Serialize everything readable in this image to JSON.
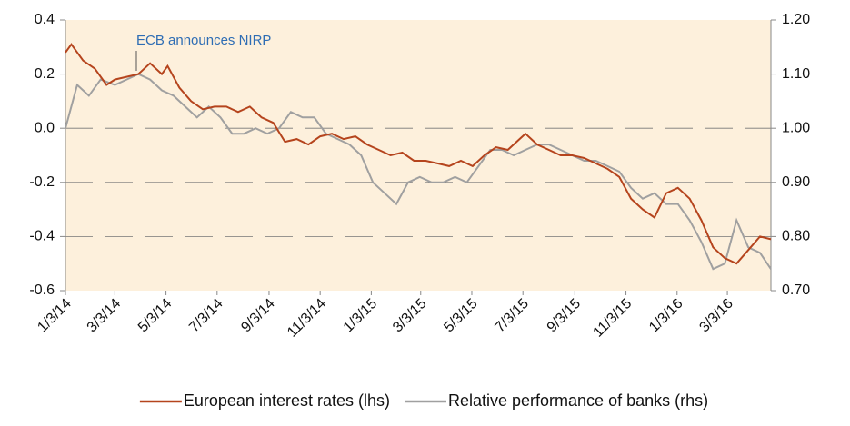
{
  "chart_data": {
    "type": "line",
    "annotation": "ECB announces NIRP",
    "xlim": [
      "1/3/14",
      "4/24/16"
    ],
    "xticks": [
      "1/3/14",
      "3/3/14",
      "5/3/14",
      "7/3/14",
      "9/3/14",
      "11/3/14",
      "1/3/15",
      "3/3/15",
      "5/3/15",
      "7/3/15",
      "9/3/15",
      "11/3/15",
      "1/3/16",
      "3/3/16"
    ],
    "ylim": [
      -0.6,
      0.4
    ],
    "yticks": [
      -0.6,
      -0.4,
      -0.2,
      {
        "value": 0,
        "label": "0.0"
      },
      0.2,
      0.4
    ],
    "y2lim": [
      0.7,
      1.2
    ],
    "y2ticks": [
      {
        "value": 0.7,
        "label": "0.70"
      },
      {
        "value": 0.8,
        "label": "0.80"
      },
      {
        "value": 0.9,
        "label": "0.90"
      },
      {
        "value": 1.0,
        "label": "1.00"
      },
      {
        "value": 1.1,
        "label": "1.10"
      },
      {
        "value": 1.2,
        "label": "1.20"
      }
    ],
    "grid": true,
    "legend": "bottom",
    "series": [
      {
        "name": "European interest rates (lhs)",
        "color": "#b5441d",
        "x": [
          "1/3/14",
          "1/10/14",
          "1/24/14",
          "2/7/14",
          "2/21/14",
          "3/3/14",
          "3/17/14",
          "3/31/14",
          "4/14/14",
          "4/28/14",
          "5/5/14",
          "5/19/14",
          "6/2/14",
          "6/16/14",
          "6/30/14",
          "7/14/14",
          "7/28/14",
          "8/11/14",
          "8/25/14",
          "9/8/14",
          "9/22/14",
          "10/6/14",
          "10/20/14",
          "11/3/14",
          "11/17/14",
          "12/1/14",
          "12/15/14",
          "12/29/14",
          "1/12/15",
          "1/26/15",
          "2/9/15",
          "2/23/15",
          "3/9/15",
          "3/23/15",
          "4/6/15",
          "4/20/15",
          "5/4/15",
          "5/18/15",
          "6/1/15",
          "6/15/15",
          "6/29/15",
          "7/6/15",
          "7/20/15",
          "8/3/15",
          "8/17/15",
          "8/31/15",
          "9/14/15",
          "9/28/15",
          "10/12/15",
          "10/26/15",
          "11/9/15",
          "11/23/15",
          "12/7/15",
          "12/21/15",
          "1/4/16",
          "1/18/16",
          "2/1/16",
          "2/15/16",
          "2/29/16",
          "3/14/16",
          "3/28/16",
          "4/11/16",
          "4/24/16"
        ],
        "values": [
          0.28,
          0.31,
          0.25,
          0.22,
          0.16,
          0.18,
          0.19,
          0.2,
          0.24,
          0.2,
          0.23,
          0.15,
          0.1,
          0.07,
          0.08,
          0.08,
          0.06,
          0.08,
          0.04,
          0.02,
          -0.05,
          -0.04,
          -0.06,
          -0.03,
          -0.02,
          -0.04,
          -0.03,
          -0.06,
          -0.08,
          -0.1,
          -0.09,
          -0.12,
          -0.12,
          -0.13,
          -0.14,
          -0.12,
          -0.14,
          -0.1,
          -0.07,
          -0.08,
          -0.04,
          -0.02,
          -0.06,
          -0.08,
          -0.1,
          -0.1,
          -0.11,
          -0.13,
          -0.15,
          -0.18,
          -0.26,
          -0.3,
          -0.33,
          -0.24,
          -0.22,
          -0.26,
          -0.34,
          -0.44,
          -0.48,
          -0.5,
          -0.45,
          -0.4,
          -0.41
        ]
      },
      {
        "name": "Relative performance of banks (rhs)",
        "color": "#a0a0a0",
        "axis": "y2",
        "x": [
          "1/3/14",
          "1/17/14",
          "1/31/14",
          "2/14/14",
          "3/3/14",
          "3/17/14",
          "3/31/14",
          "4/14/14",
          "4/28/14",
          "5/12/14",
          "5/26/14",
          "6/9/14",
          "6/23/14",
          "7/7/14",
          "7/21/14",
          "8/4/14",
          "8/18/14",
          "9/1/14",
          "9/15/14",
          "9/29/14",
          "10/13/14",
          "10/27/14",
          "11/10/14",
          "11/24/14",
          "12/8/14",
          "12/22/14",
          "1/5/15",
          "1/19/15",
          "2/2/15",
          "2/16/15",
          "3/2/15",
          "3/16/15",
          "3/30/15",
          "4/13/15",
          "4/27/15",
          "5/11/15",
          "5/25/15",
          "6/8/15",
          "6/22/15",
          "7/6/15",
          "7/20/15",
          "8/3/15",
          "8/17/15",
          "8/31/15",
          "9/14/15",
          "9/28/15",
          "10/12/15",
          "10/26/15",
          "11/9/15",
          "11/23/15",
          "12/7/15",
          "12/21/15",
          "1/4/16",
          "1/18/16",
          "2/1/16",
          "2/15/16",
          "2/29/16",
          "3/14/16",
          "3/28/16",
          "4/11/16",
          "4/24/16"
        ],
        "values": [
          1.0,
          1.08,
          1.06,
          1.09,
          1.08,
          1.09,
          1.1,
          1.09,
          1.07,
          1.06,
          1.04,
          1.02,
          1.04,
          1.02,
          0.99,
          0.99,
          1.0,
          0.99,
          1.0,
          1.03,
          1.02,
          1.02,
          0.99,
          0.98,
          0.97,
          0.95,
          0.9,
          0.88,
          0.86,
          0.9,
          0.91,
          0.9,
          0.9,
          0.91,
          0.9,
          0.93,
          0.96,
          0.96,
          0.95,
          0.96,
          0.97,
          0.97,
          0.96,
          0.95,
          0.94,
          0.94,
          0.93,
          0.92,
          0.89,
          0.87,
          0.88,
          0.86,
          0.86,
          0.83,
          0.79,
          0.74,
          0.75,
          0.83,
          0.78,
          0.77,
          0.74
        ]
      }
    ]
  }
}
